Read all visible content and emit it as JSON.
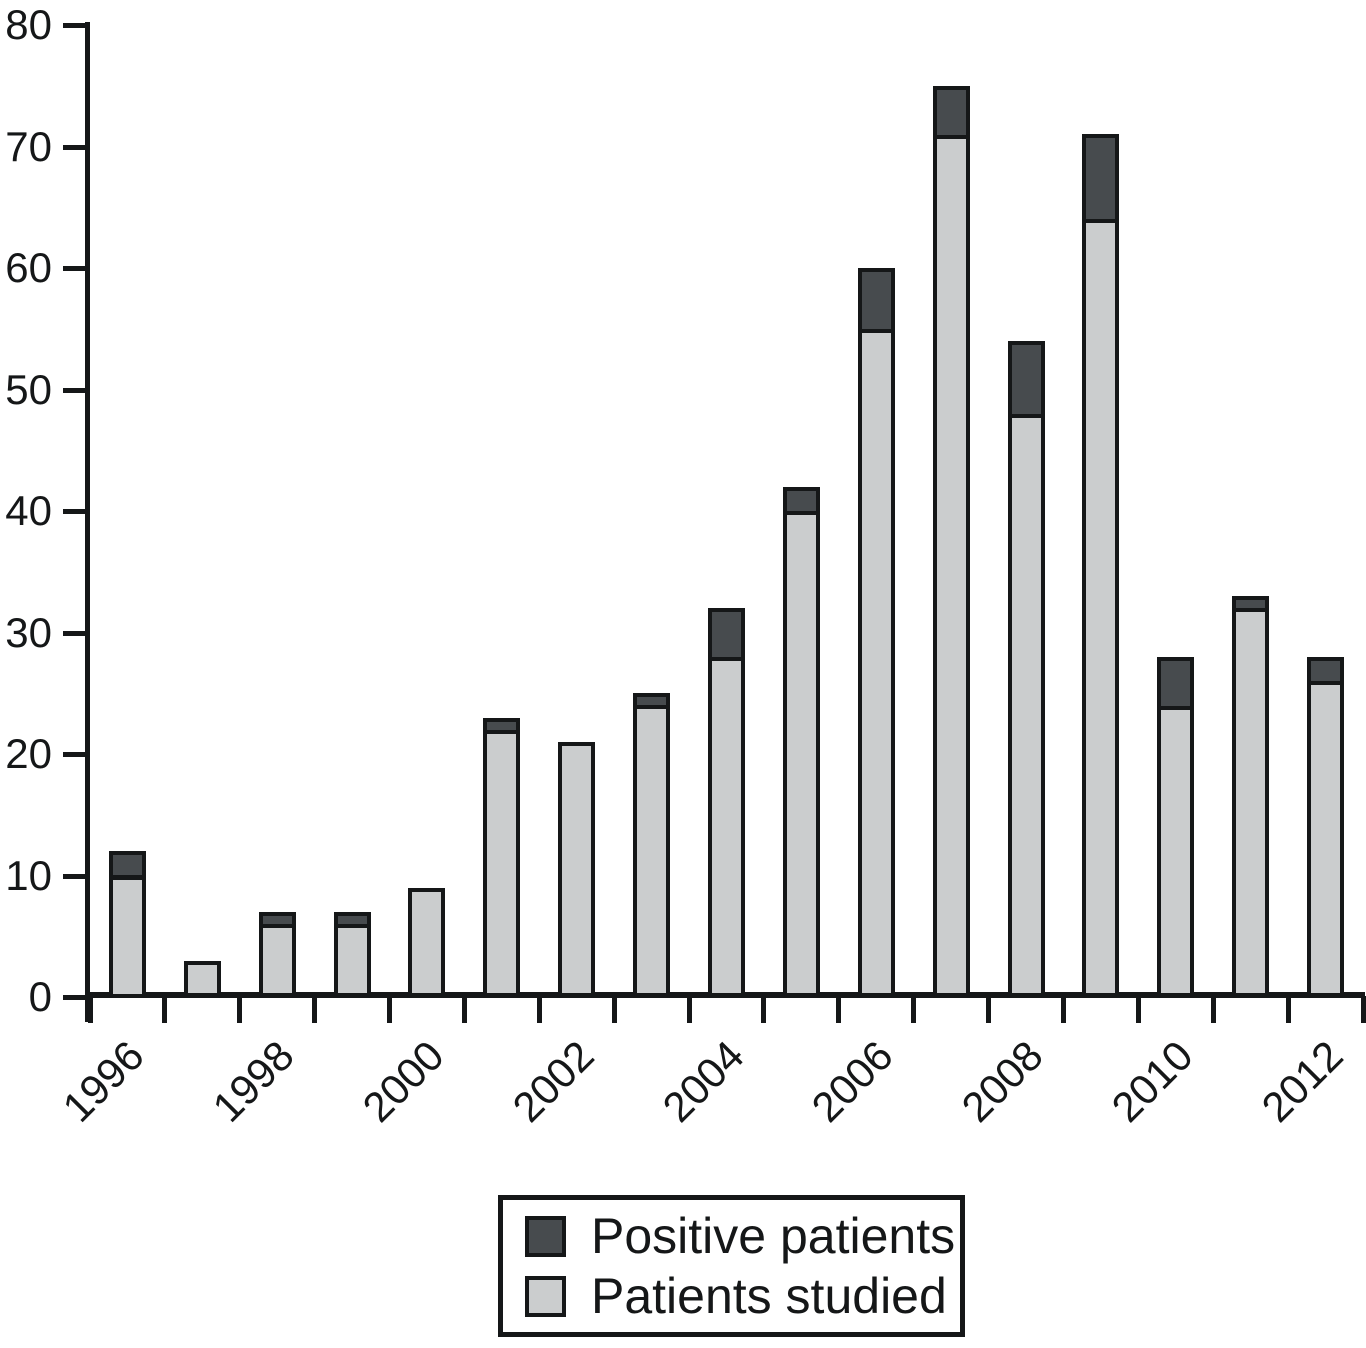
{
  "figure": {
    "background_color": "#ffffff",
    "axis_color": "#151718"
  },
  "chart_data": {
    "type": "bar",
    "stacked": true,
    "title": "",
    "xlabel": "",
    "ylabel": "",
    "categories": [
      "1996",
      "1997",
      "1998",
      "1999",
      "2000",
      "2001",
      "2002",
      "2003",
      "2004",
      "2005",
      "2006",
      "2007",
      "2008",
      "2009",
      "2010",
      "2011",
      "2012"
    ],
    "series": [
      {
        "name": "Patients studied",
        "stack_position": "bottom",
        "color": "#cbcdce",
        "values": [
          10,
          3,
          6,
          6,
          9,
          22,
          21,
          24,
          28,
          40,
          55,
          71,
          48,
          64,
          24,
          32,
          26
        ]
      },
      {
        "name": "Positive patients",
        "stack_position": "top",
        "color": "#474b4e",
        "values": [
          2,
          0,
          1,
          1,
          0,
          1,
          0,
          1,
          4,
          2,
          5,
          4,
          6,
          7,
          4,
          1,
          2
        ]
      }
    ],
    "stacked_totals": [
      12,
      3,
      7,
      7,
      9,
      23,
      21,
      25,
      32,
      42,
      60,
      75,
      54,
      71,
      28,
      33,
      28
    ],
    "ylim": [
      0,
      80
    ],
    "yticks": [
      "0",
      "10",
      "20",
      "30",
      "40",
      "50",
      "60",
      "70",
      "80"
    ],
    "x_tick_labels": [
      "1996",
      "1998",
      "2000",
      "2002",
      "2004",
      "2006",
      "2008",
      "2010",
      "2012"
    ],
    "x_labeled_slots": [
      0,
      2,
      4,
      6,
      8,
      10,
      12,
      14,
      16
    ],
    "x_label_rotation_deg": 45,
    "grid": false,
    "legend": {
      "position": "bottom-center",
      "border": true,
      "entries": [
        {
          "label": "Positive patients",
          "color": "#474b4e"
        },
        {
          "label": "Patients studied",
          "color": "#cbcdce"
        }
      ]
    }
  }
}
